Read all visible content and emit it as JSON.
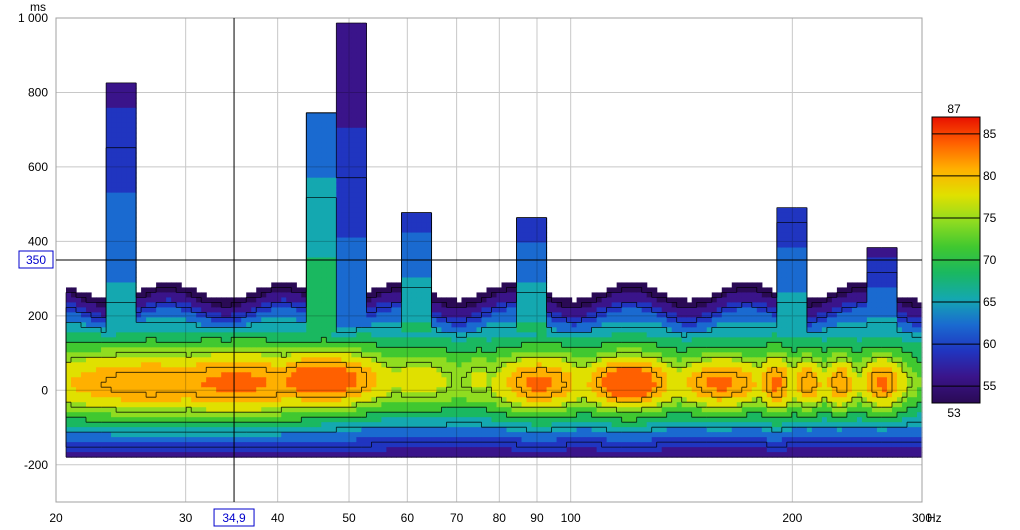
{
  "chart_data": {
    "type": "heatmap",
    "title": "",
    "xlabel": "",
    "ylabel": "",
    "x_unit": "Hz",
    "y_unit": "ms",
    "x_scale": "log",
    "xlim": [
      20,
      300
    ],
    "ylim": [
      -300,
      1000
    ],
    "x_ticks": [
      {
        "v": 20,
        "label": "20"
      },
      {
        "v": 30,
        "label": "30"
      },
      {
        "v": 40,
        "label": "40"
      },
      {
        "v": 50,
        "label": "50"
      },
      {
        "v": 60,
        "label": "60"
      },
      {
        "v": 70,
        "label": "70"
      },
      {
        "v": 80,
        "label": "80"
      },
      {
        "v": 90,
        "label": "90"
      },
      {
        "v": 100,
        "label": "100"
      },
      {
        "v": 200,
        "label": "200"
      },
      {
        "v": 300,
        "label": "300"
      }
    ],
    "y_ticks": [
      {
        "v": 1000,
        "label": "1 000"
      },
      {
        "v": 800,
        "label": "800"
      },
      {
        "v": 600,
        "label": "600"
      },
      {
        "v": 400,
        "label": "400"
      },
      {
        "v": 200,
        "label": "200"
      },
      {
        "v": 0,
        "label": "0"
      },
      {
        "v": -200,
        "label": "-200"
      }
    ],
    "grid": true,
    "cursor": {
      "x": 34.9,
      "y": 350,
      "x_label": "34,9",
      "y_label": "350"
    },
    "colorbar": {
      "min": 53,
      "max": 87,
      "min_label": "53",
      "max_label": "87",
      "ticks": [
        55,
        60,
        65,
        70,
        75,
        80,
        85
      ],
      "tick_labels": [
        "55",
        "60",
        "65",
        "70",
        "75",
        "80",
        "85"
      ],
      "colors": [
        "#2a0a55",
        "#3a148a",
        "#2035c0",
        "#1a6ad0",
        "#14a8b0",
        "#1ab860",
        "#40c830",
        "#90dc20",
        "#e0e000",
        "#ffb000",
        "#ff6000",
        "#e81000"
      ]
    },
    "levels": [
      55,
      60,
      65,
      70,
      75,
      80,
      85
    ],
    "base": {
      "x_start": 20.5,
      "x_end": 300,
      "bottom_ms": -175
    },
    "modes": [
      {
        "f": 27,
        "t": 20,
        "level": 81,
        "f_width": 0.14,
        "t_sigma": 70
      },
      {
        "f": 35,
        "t": 20,
        "level": 82,
        "f_width": 0.12,
        "t_sigma": 70
      },
      {
        "f": 46,
        "t": 30,
        "level": 84,
        "f_width": 0.07,
        "t_sigma": 60
      },
      {
        "f": 62,
        "t": 30,
        "level": 77,
        "f_width": 0.05,
        "t_sigma": 55
      },
      {
        "f": 75,
        "t": 30,
        "level": 76,
        "f_width": 0.03,
        "t_sigma": 50
      },
      {
        "f": 91,
        "t": 20,
        "level": 82,
        "f_width": 0.05,
        "t_sigma": 60
      },
      {
        "f": 120,
        "t": 20,
        "level": 84,
        "f_width": 0.05,
        "t_sigma": 60
      },
      {
        "f": 160,
        "t": 20,
        "level": 82,
        "f_width": 0.05,
        "t_sigma": 55
      },
      {
        "f": 190,
        "t": 20,
        "level": 82,
        "f_width": 0.02,
        "t_sigma": 60
      },
      {
        "f": 210,
        "t": 20,
        "level": 81,
        "f_width": 0.02,
        "t_sigma": 55
      },
      {
        "f": 232,
        "t": 20,
        "level": 81,
        "f_width": 0.02,
        "t_sigma": 55
      },
      {
        "f": 265,
        "t": 20,
        "level": 82,
        "f_width": 0.025,
        "t_sigma": 55
      }
    ],
    "tails": [
      {
        "f": 24.5,
        "t_top": 820,
        "level": 58
      },
      {
        "f": 46,
        "t_top": 740,
        "level": 62
      },
      {
        "f": 50.5,
        "t_top": 990,
        "level": 56
      },
      {
        "f": 62,
        "t_top": 480,
        "level": 60
      },
      {
        "f": 89,
        "t_top": 460,
        "level": 60
      },
      {
        "f": 200,
        "t_top": 490,
        "level": 59
      },
      {
        "f": 263,
        "t_top": 380,
        "level": 58
      }
    ]
  }
}
